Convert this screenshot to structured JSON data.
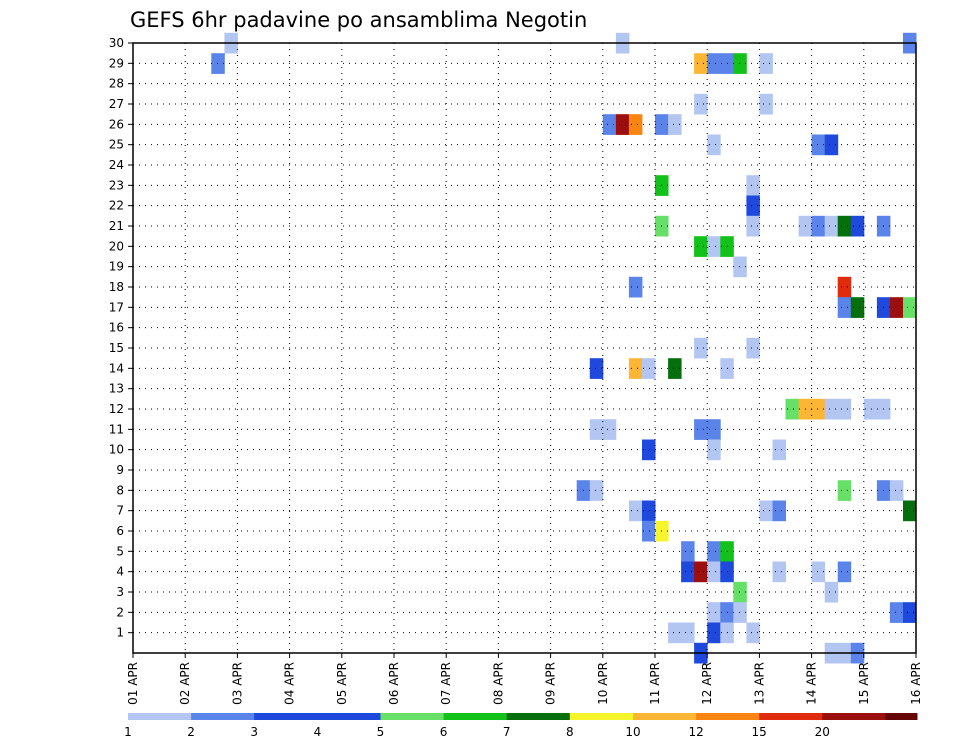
{
  "chart_data": {
    "type": "heatmap",
    "title": "GEFS 6hr padavine po ansamblima Negotin",
    "y_ticks": [
      "1",
      "2",
      "3",
      "4",
      "5",
      "6",
      "7",
      "8",
      "9",
      "10",
      "11",
      "12",
      "13",
      "14",
      "15",
      "16",
      "17",
      "18",
      "19",
      "20",
      "21",
      "22",
      "23",
      "24",
      "25",
      "26",
      "27",
      "28",
      "29",
      "30"
    ],
    "x_ticks": [
      "01 APR",
      "02 APR",
      "03 APR",
      "04 APR",
      "05 APR",
      "06 APR",
      "07 APR",
      "08 APR",
      "09 APR",
      "10 APR",
      "11 APR",
      "12 APR",
      "13 APR",
      "14 APR",
      "15 APR",
      "16 APR"
    ],
    "x_range": [
      "01 APR 00UTC",
      "16 APR 00UTC"
    ],
    "y_range": [
      0,
      30
    ],
    "grid": true,
    "colorbar": {
      "tick_labels": [
        "1",
        "2",
        "3",
        "4",
        "5",
        "6",
        "7",
        "8",
        "10",
        "12",
        "15",
        "20"
      ],
      "colors": [
        "#b3c6f2",
        "#5b84ea",
        "#1f48dc",
        "#1f48dc",
        "#66e066",
        "#12c21a",
        "#056e0d",
        "#f5f52a",
        "#fdb634",
        "#f98412",
        "#de2c0c",
        "#9c0f0f",
        "#650505"
      ]
    },
    "cells": [
      {
        "day": 2.75,
        "member": 30,
        "color": "#b3c6f2"
      },
      {
        "day": 10.25,
        "member": 30,
        "color": "#b3c6f2"
      },
      {
        "day": 15.75,
        "member": 30,
        "color": "#5b84ea"
      },
      {
        "day": 2.5,
        "member": 29,
        "color": "#5b84ea"
      },
      {
        "day": 11.75,
        "member": 29,
        "color": "#fdb634"
      },
      {
        "day": 12.0,
        "member": 29,
        "color": "#5b84ea"
      },
      {
        "day": 12.25,
        "member": 29,
        "color": "#5b84ea"
      },
      {
        "day": 12.5,
        "member": 29,
        "color": "#12c21a"
      },
      {
        "day": 13.0,
        "member": 29,
        "color": "#b3c6f2"
      },
      {
        "day": 11.75,
        "member": 27,
        "color": "#b3c6f2"
      },
      {
        "day": 13.0,
        "member": 27,
        "color": "#b3c6f2"
      },
      {
        "day": 10.0,
        "member": 26,
        "color": "#5b84ea"
      },
      {
        "day": 10.25,
        "member": 26,
        "color": "#9c0f0f"
      },
      {
        "day": 10.5,
        "member": 26,
        "color": "#f98412"
      },
      {
        "day": 11.0,
        "member": 26,
        "color": "#5b84ea"
      },
      {
        "day": 11.25,
        "member": 26,
        "color": "#b3c6f2"
      },
      {
        "day": 12.0,
        "member": 25,
        "color": "#b3c6f2"
      },
      {
        "day": 14.0,
        "member": 25,
        "color": "#5b84ea"
      },
      {
        "day": 14.25,
        "member": 25,
        "color": "#1f48dc"
      },
      {
        "day": 11.0,
        "member": 23,
        "color": "#12c21a"
      },
      {
        "day": 12.75,
        "member": 23,
        "color": "#b3c6f2"
      },
      {
        "day": 12.75,
        "member": 22,
        "color": "#1f48dc"
      },
      {
        "day": 11.0,
        "member": 21,
        "color": "#66e066"
      },
      {
        "day": 12.75,
        "member": 21,
        "color": "#b3c6f2"
      },
      {
        "day": 13.75,
        "member": 21,
        "color": "#b3c6f2"
      },
      {
        "day": 14.0,
        "member": 21,
        "color": "#5b84ea"
      },
      {
        "day": 14.25,
        "member": 21,
        "color": "#b3c6f2"
      },
      {
        "day": 14.5,
        "member": 21,
        "color": "#056e0d"
      },
      {
        "day": 14.75,
        "member": 21,
        "color": "#1f48dc"
      },
      {
        "day": 15.25,
        "member": 21,
        "color": "#5b84ea"
      },
      {
        "day": 11.75,
        "member": 20,
        "color": "#12c21a"
      },
      {
        "day": 12.0,
        "member": 20,
        "color": "#b3c6f2"
      },
      {
        "day": 12.25,
        "member": 20,
        "color": "#12c21a"
      },
      {
        "day": 12.5,
        "member": 19,
        "color": "#b3c6f2"
      },
      {
        "day": 10.5,
        "member": 18,
        "color": "#5b84ea"
      },
      {
        "day": 14.5,
        "member": 18,
        "color": "#de2c0c"
      },
      {
        "day": 14.5,
        "member": 17,
        "color": "#5b84ea"
      },
      {
        "day": 14.75,
        "member": 17,
        "color": "#056e0d"
      },
      {
        "day": 15.25,
        "member": 17,
        "color": "#1f48dc"
      },
      {
        "day": 15.5,
        "member": 17,
        "color": "#9c0f0f"
      },
      {
        "day": 15.75,
        "member": 17,
        "color": "#66e066"
      },
      {
        "day": 11.75,
        "member": 15,
        "color": "#b3c6f2"
      },
      {
        "day": 12.75,
        "member": 15,
        "color": "#b3c6f2"
      },
      {
        "day": 9.75,
        "member": 14,
        "color": "#1f48dc"
      },
      {
        "day": 10.5,
        "member": 14,
        "color": "#fdb634"
      },
      {
        "day": 10.75,
        "member": 14,
        "color": "#b3c6f2"
      },
      {
        "day": 11.25,
        "member": 14,
        "color": "#056e0d"
      },
      {
        "day": 12.25,
        "member": 14,
        "color": "#b3c6f2"
      },
      {
        "day": 13.5,
        "member": 12,
        "color": "#66e066"
      },
      {
        "day": 13.75,
        "member": 12,
        "color": "#fdb634"
      },
      {
        "day": 14.0,
        "member": 12,
        "color": "#fdb634"
      },
      {
        "day": 14.25,
        "member": 12,
        "color": "#b3c6f2"
      },
      {
        "day": 14.5,
        "member": 12,
        "color": "#b3c6f2"
      },
      {
        "day": 15.0,
        "member": 12,
        "color": "#b3c6f2"
      },
      {
        "day": 15.25,
        "member": 12,
        "color": "#b3c6f2"
      },
      {
        "day": 9.75,
        "member": 11,
        "color": "#b3c6f2"
      },
      {
        "day": 10.0,
        "member": 11,
        "color": "#b3c6f2"
      },
      {
        "day": 11.75,
        "member": 11,
        "color": "#5b84ea"
      },
      {
        "day": 12.0,
        "member": 11,
        "color": "#5b84ea"
      },
      {
        "day": 10.75,
        "member": 10,
        "color": "#1f48dc"
      },
      {
        "day": 12.0,
        "member": 10,
        "color": "#b3c6f2"
      },
      {
        "day": 13.25,
        "member": 10,
        "color": "#b3c6f2"
      },
      {
        "day": 9.5,
        "member": 8,
        "color": "#5b84ea"
      },
      {
        "day": 9.75,
        "member": 8,
        "color": "#b3c6f2"
      },
      {
        "day": 14.5,
        "member": 8,
        "color": "#66e066"
      },
      {
        "day": 15.25,
        "member": 8,
        "color": "#5b84ea"
      },
      {
        "day": 15.5,
        "member": 8,
        "color": "#b3c6f2"
      },
      {
        "day": 10.5,
        "member": 7,
        "color": "#b3c6f2"
      },
      {
        "day": 10.75,
        "member": 7,
        "color": "#1f48dc"
      },
      {
        "day": 13.0,
        "member": 7,
        "color": "#b3c6f2"
      },
      {
        "day": 13.25,
        "member": 7,
        "color": "#5b84ea"
      },
      {
        "day": 15.75,
        "member": 7,
        "color": "#056e0d"
      },
      {
        "day": 10.75,
        "member": 6,
        "color": "#5b84ea"
      },
      {
        "day": 11.0,
        "member": 6,
        "color": "#f5f52a"
      },
      {
        "day": 11.5,
        "member": 5,
        "color": "#5b84ea"
      },
      {
        "day": 12.0,
        "member": 5,
        "color": "#5b84ea"
      },
      {
        "day": 12.25,
        "member": 5,
        "color": "#12c21a"
      },
      {
        "day": 11.5,
        "member": 4,
        "color": "#1f48dc"
      },
      {
        "day": 11.75,
        "member": 4,
        "color": "#9c0f0f"
      },
      {
        "day": 12.0,
        "member": 4,
        "color": "#b3c6f2"
      },
      {
        "day": 12.25,
        "member": 4,
        "color": "#1f48dc"
      },
      {
        "day": 13.25,
        "member": 4,
        "color": "#b3c6f2"
      },
      {
        "day": 14.0,
        "member": 4,
        "color": "#b3c6f2"
      },
      {
        "day": 14.5,
        "member": 4,
        "color": "#5b84ea"
      },
      {
        "day": 12.5,
        "member": 3,
        "color": "#66e066"
      },
      {
        "day": 14.25,
        "member": 3,
        "color": "#b3c6f2"
      },
      {
        "day": 12.0,
        "member": 2,
        "color": "#b3c6f2"
      },
      {
        "day": 12.25,
        "member": 2,
        "color": "#5b84ea"
      },
      {
        "day": 12.5,
        "member": 2,
        "color": "#b3c6f2"
      },
      {
        "day": 15.5,
        "member": 2,
        "color": "#5b84ea"
      },
      {
        "day": 15.75,
        "member": 2,
        "color": "#1f48dc"
      },
      {
        "day": 11.25,
        "member": 1,
        "color": "#b3c6f2"
      },
      {
        "day": 11.5,
        "member": 1,
        "color": "#b3c6f2"
      },
      {
        "day": 12.0,
        "member": 1,
        "color": "#1f48dc"
      },
      {
        "day": 12.25,
        "member": 1,
        "color": "#b3c6f2"
      },
      {
        "day": 12.75,
        "member": 1,
        "color": "#b3c6f2"
      },
      {
        "day": 11.75,
        "member": 0,
        "color": "#1f48dc"
      },
      {
        "day": 14.25,
        "member": 0,
        "color": "#b3c6f2"
      },
      {
        "day": 14.5,
        "member": 0,
        "color": "#b3c6f2"
      },
      {
        "day": 14.75,
        "member": 0,
        "color": "#5b84ea"
      }
    ]
  }
}
